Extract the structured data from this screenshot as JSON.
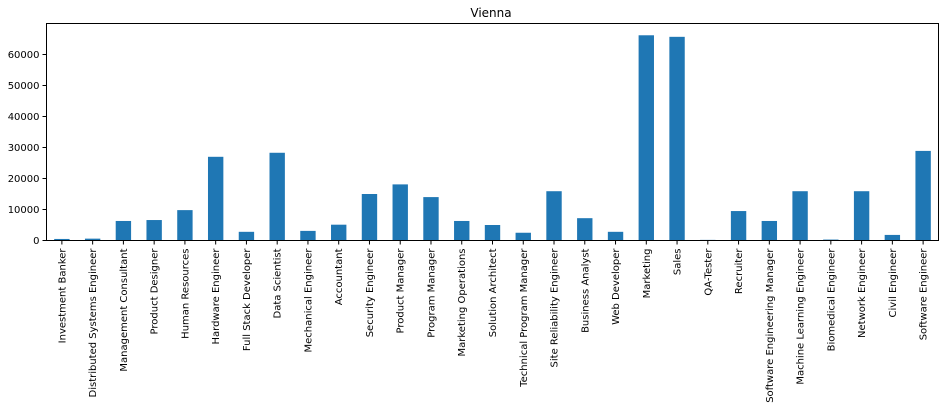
{
  "chart_data": {
    "type": "bar",
    "title": "Vienna",
    "xlabel": "",
    "ylabel": "",
    "ylim": [
      0,
      70000
    ],
    "yticks": [
      0,
      10000,
      20000,
      30000,
      40000,
      50000,
      60000
    ],
    "grid": false,
    "bar_color": "#1f77b4",
    "categories": [
      "Investment Banker",
      "Distributed Systems Engineer",
      "Management Consultant",
      "Product Designer",
      "Human Resources",
      "Hardware Engineer",
      "Full Stack Developer",
      "Data Scientist",
      "Mechanical Engineer",
      "Accountant",
      "Security Engineer",
      "Product Manager",
      "Program Manager",
      "Marketing Operations",
      "Solution Architect",
      "Technical Program Manager",
      "Site Reliability Engineer",
      "Business Analyst",
      "Web Developer",
      "Marketing",
      "Sales",
      "QA-Tester",
      "Recruiter",
      "Software Engineering Manager",
      "Machine Learning Engineer",
      "Biomedical Engineer",
      "Network Engineer",
      "Civil Engineer",
      "Software Engineer"
    ],
    "values": [
      500,
      600,
      6300,
      6600,
      9800,
      27000,
      2800,
      28300,
      3100,
      5100,
      15000,
      18100,
      14000,
      6300,
      5000,
      2500,
      15900,
      7200,
      2800,
      66200,
      65700,
      200,
      9500,
      6300,
      15900,
      300,
      15900,
      1800,
      28900
    ]
  }
}
